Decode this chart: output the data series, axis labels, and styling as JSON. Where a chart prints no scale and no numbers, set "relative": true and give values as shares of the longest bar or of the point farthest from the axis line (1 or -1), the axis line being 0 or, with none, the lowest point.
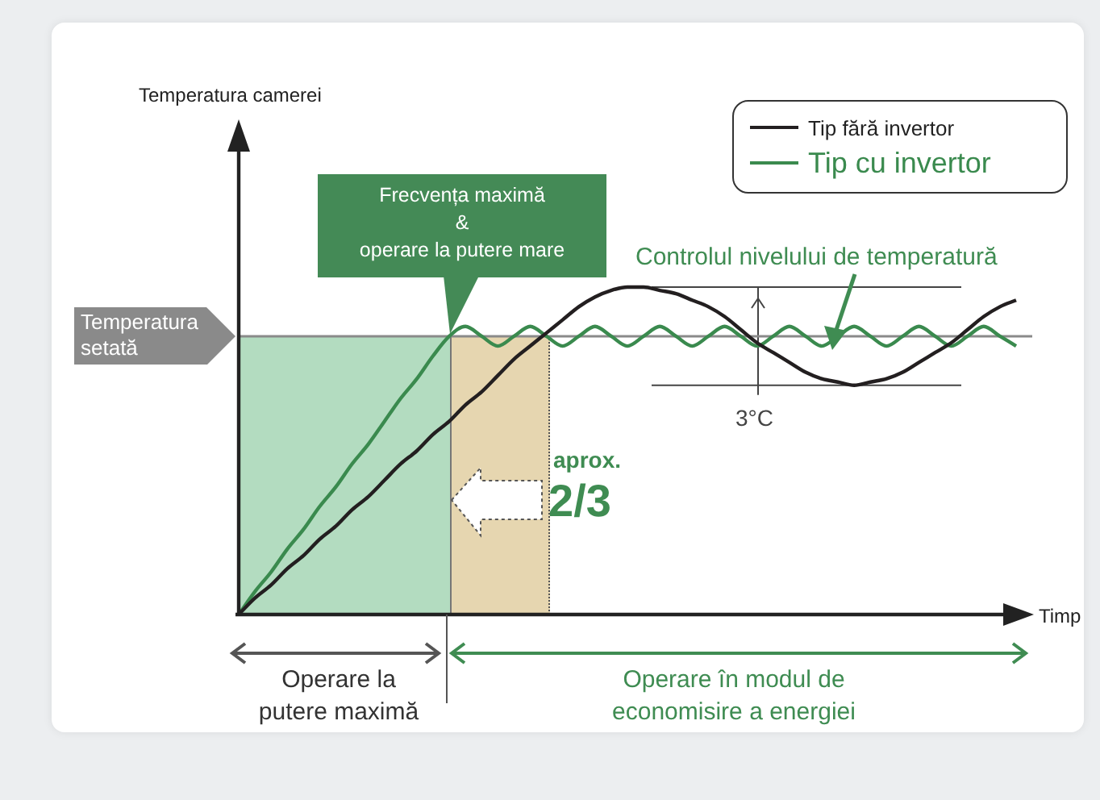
{
  "chart_data": {
    "type": "line",
    "relative": true,
    "xlabel": "Timp",
    "legend": "top right",
    "marker": "none",
    "categories": [
      null,
      null,
      null,
      null,
      null,
      null,
      null,
      null,
      null,
      null,
      null,
      null,
      null,
      null,
      null,
      null,
      null,
      null,
      null,
      null,
      null,
      null,
      null,
      null,
      null,
      null,
      null,
      null,
      null,
      null,
      null,
      null,
      null,
      null,
      null,
      null,
      null,
      null,
      null,
      null,
      null,
      null,
      null,
      null,
      null,
      null,
      null,
      null,
      null
    ],
    "series": [
      {
        "name": "Tip fără invertor",
        "color": "#231f20",
        "values": [
          0,
          0.05,
          0.09,
          0.14,
          0.18,
          0.23,
          0.27,
          0.32,
          0.36,
          0.41,
          0.46,
          0.5,
          0.55,
          0.59,
          0.64,
          0.68,
          0.73,
          0.78,
          0.82,
          0.86,
          0.9,
          0.94,
          0.97,
          0.99,
          1,
          1,
          0.99,
          0.98,
          0.96,
          0.94,
          0.91,
          0.87,
          0.83,
          0.8,
          0.77,
          0.74,
          0.72,
          0.71,
          0.7,
          0.71,
          0.72,
          0.74,
          0.77,
          0.8,
          0.83,
          0.87,
          0.91,
          0.94,
          0.96
        ]
      },
      {
        "name": "Tip cu invertor",
        "color": "#3a8a4e",
        "values": [
          0,
          0.07,
          0.13,
          0.2,
          0.26,
          0.33,
          0.39,
          0.46,
          0.52,
          0.59,
          0.66,
          0.72,
          0.79,
          0.85,
          0.88,
          0.85,
          0.82,
          0.85,
          0.88,
          0.85,
          0.82,
          0.85,
          0.88,
          0.85,
          0.82,
          0.85,
          0.88,
          0.85,
          0.82,
          0.85,
          0.88,
          0.85,
          0.82,
          0.85,
          0.88,
          0.85,
          0.82,
          0.85,
          0.88,
          0.85,
          0.82,
          0.85,
          0.88,
          0.85,
          0.82,
          0.85,
          0.88,
          0.85,
          0.82
        ]
      }
    ],
    "ref_lines": [
      {
        "axis": "y",
        "value": 0.85,
        "label": "Temperatura setată",
        "color": "#8a8a8a"
      }
    ],
    "annotations": [
      "Frecvența maximă\n&\noperare la putere mare",
      "Controlul nivelului de temperatură",
      "3°C",
      "aprox.",
      "2/3",
      "Operare la\nputere maximă",
      "Operare în modul de\neconomisire a energiei",
      "Temperatura camerei"
    ]
  }
}
